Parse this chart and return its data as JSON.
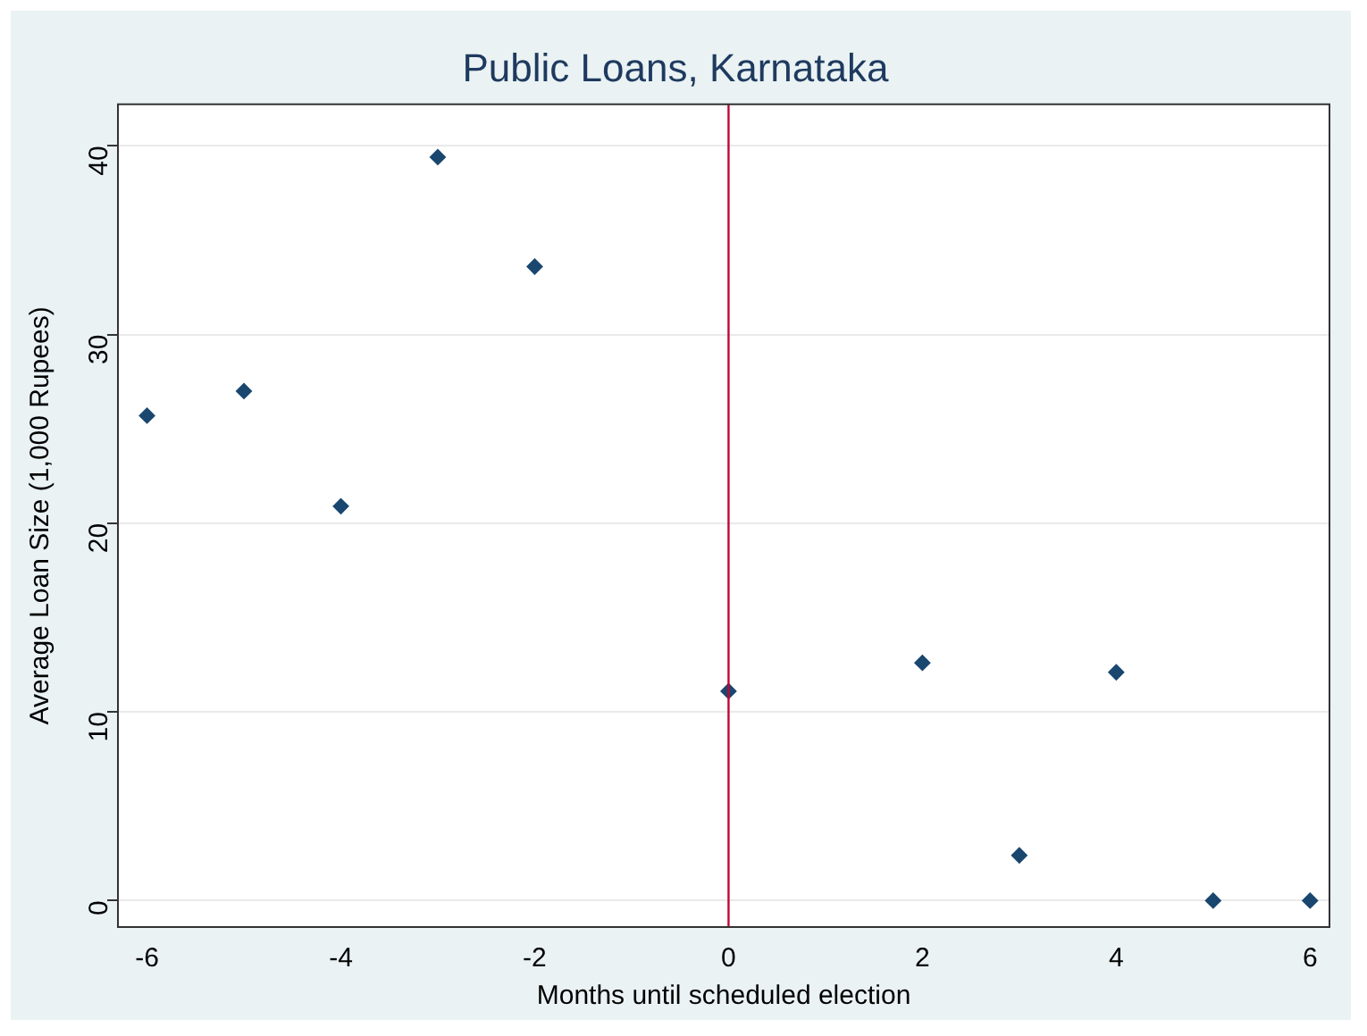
{
  "chart_data": {
    "type": "scatter",
    "title": "Public Loans, Karnataka",
    "xlabel": "Months until scheduled election",
    "ylabel": "Average Loan Size (1,000 Rupees)",
    "x": [
      -6,
      -5,
      -4,
      -3,
      -2,
      0,
      2,
      3,
      4,
      5,
      6
    ],
    "series": [
      {
        "color": "#1a476f",
        "values": [
          25.7,
          27.0,
          20.9,
          39.4,
          33.6,
          11.1,
          12.6,
          2.4,
          12.1,
          0,
          0
        ]
      }
    ],
    "xlim": [
      -6.3,
      6.2
    ],
    "xticks": [
      -6,
      -4,
      -2,
      0,
      2,
      4,
      6
    ],
    "ylim": [
      -1.4,
      42.2
    ],
    "yticks": [
      0,
      10,
      20,
      30,
      40
    ],
    "ref_lines": [
      {
        "axis": "x",
        "value": 0,
        "color": "#c10534"
      }
    ],
    "grid": "y",
    "legend": false,
    "marker": "diamond"
  }
}
